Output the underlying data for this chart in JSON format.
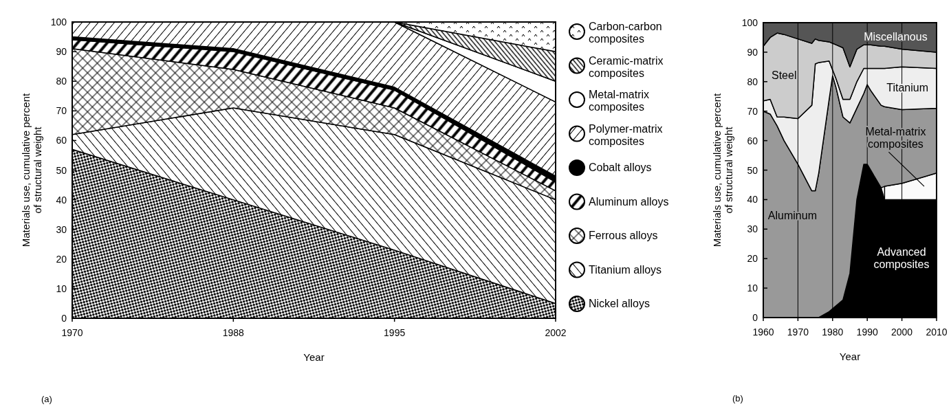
{
  "chart_data": [
    {
      "type": "area",
      "stacked": true,
      "xlabel": "Year",
      "ylabel": "Materials use, cumulative percent of structural weight",
      "categories": [
        "1970",
        "1988",
        "1995",
        "2002"
      ],
      "ylim": [
        0,
        100
      ],
      "yticks": [
        0,
        10,
        20,
        30,
        40,
        50,
        60,
        70,
        80,
        90,
        100
      ],
      "legend": "right",
      "annotations": [
        "(a)"
      ],
      "series": [
        {
          "name": "Nickel alloys",
          "color": "#000000",
          "values": [
            57,
            40,
            23,
            5
          ]
        },
        {
          "name": "Titanium alloys",
          "color": "#000000",
          "values": [
            5,
            31,
            39,
            35
          ]
        },
        {
          "name": "Ferrous alloys",
          "color": "#000000",
          "values": [
            29,
            13,
            9,
            3
          ]
        },
        {
          "name": "Aluminum alloys",
          "color": "#000000",
          "values": [
            3,
            6,
            6,
            3
          ]
        },
        {
          "name": "Cobalt alloys",
          "color": "#000000",
          "values": [
            1,
            1,
            1,
            2
          ]
        },
        {
          "name": "Polymer-matrix composites",
          "color": "#000000",
          "values": [
            5,
            9,
            22,
            25
          ]
        },
        {
          "name": "Metal-matrix composites",
          "color": "#000000",
          "values": [
            0,
            0,
            0,
            7
          ]
        },
        {
          "name": "Ceramic-matrix composites",
          "color": "#000000",
          "values": [
            0,
            0,
            0,
            10
          ]
        },
        {
          "name": "Carbon-carbon composites",
          "color": "#000000",
          "values": [
            0,
            0,
            0,
            10
          ]
        }
      ]
    },
    {
      "type": "area",
      "stacked": true,
      "xlabel": "Year",
      "ylabel": "Materials use, cumulative percent of structural weight",
      "x": [
        1960,
        1962,
        1964,
        1966,
        1970,
        1974,
        1975,
        1976,
        1979,
        1980,
        1981,
        1983,
        1985,
        1987,
        1989,
        1990,
        1991,
        1994,
        1995,
        2000,
        2010
      ],
      "xlim": [
        1960,
        2010
      ],
      "xticks": [
        1960,
        1970,
        1980,
        1990,
        2000,
        2010
      ],
      "ylim": [
        0,
        100
      ],
      "yticks": [
        0,
        10,
        20,
        30,
        40,
        50,
        60,
        70,
        80,
        90,
        100
      ],
      "grid": "x",
      "legend": false,
      "annotations": [
        "(b)"
      ],
      "series": [
        {
          "name": "Advanced composites",
          "color": "#000000",
          "values": [
            0,
            0,
            0,
            0,
            0,
            0,
            0,
            0,
            2,
            3,
            4,
            6,
            15,
            40,
            52,
            52,
            50,
            44,
            40,
            40,
            40
          ]
        },
        {
          "name": "Metal-matrix composites",
          "color": "#fafafa",
          "values": [
            null,
            null,
            null,
            null,
            null,
            null,
            null,
            null,
            null,
            null,
            null,
            null,
            null,
            null,
            null,
            null,
            null,
            null,
            4.5,
            5.5,
            9
          ]
        },
        {
          "name": "Aluminum",
          "color": "#999999",
          "values": [
            70,
            69,
            65,
            60,
            52,
            43,
            43,
            49,
            72,
            79,
            74,
            62,
            51,
            31,
            24,
            27,
            27,
            28,
            27,
            25,
            22
          ]
        },
        {
          "name": "Titanium",
          "color": "#eeeeee",
          "values": [
            3.5,
            5,
            3,
            8,
            15.5,
            29,
            43,
            37.5,
            13,
            2,
            3,
            6,
            8,
            9,
            8.5,
            5.5,
            7.5,
            12.5,
            13,
            14.5,
            13.5
          ]
        },
        {
          "name": "Steel",
          "color": "#cccccc",
          "values": [
            18.5,
            21,
            28.5,
            28,
            27,
            21,
            8.5,
            7.5,
            6.5,
            9,
            11.5,
            17.5,
            11,
            11,
            8,
            8,
            8,
            7.5,
            7.5,
            6,
            5.5
          ]
        },
        {
          "name": "Miscellanous",
          "color": "#555555",
          "values": [
            8,
            5,
            3.5,
            4,
            5.5,
            7,
            5.5,
            6,
            6.5,
            7,
            7.5,
            8.5,
            15,
            9,
            7.5,
            7.5,
            7.5,
            8,
            8,
            9,
            10
          ]
        }
      ]
    }
  ]
}
